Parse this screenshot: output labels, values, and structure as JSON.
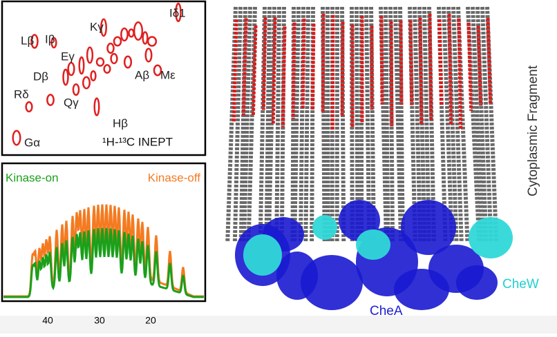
{
  "nmr_panel": {
    "peak_labels": [
      "Lβ",
      "Iβ",
      "Eγ",
      "Kγ",
      "Iδ1",
      "Dβ",
      "Aβ",
      "Mε",
      "Rδ",
      "Qγ",
      "Hβ",
      "Gα"
    ],
    "experiment": "¹H-¹³C INEPT"
  },
  "spectra_panel": {
    "legend": [
      "Kinase-on",
      "Kinase-off"
    ],
    "x_tick_labels": [
      "40",
      "30",
      "20"
    ]
  },
  "structure_panel": {
    "region": "Cytoplasmic Fragment",
    "chew": "CheW",
    "chea": "CheA"
  }
}
